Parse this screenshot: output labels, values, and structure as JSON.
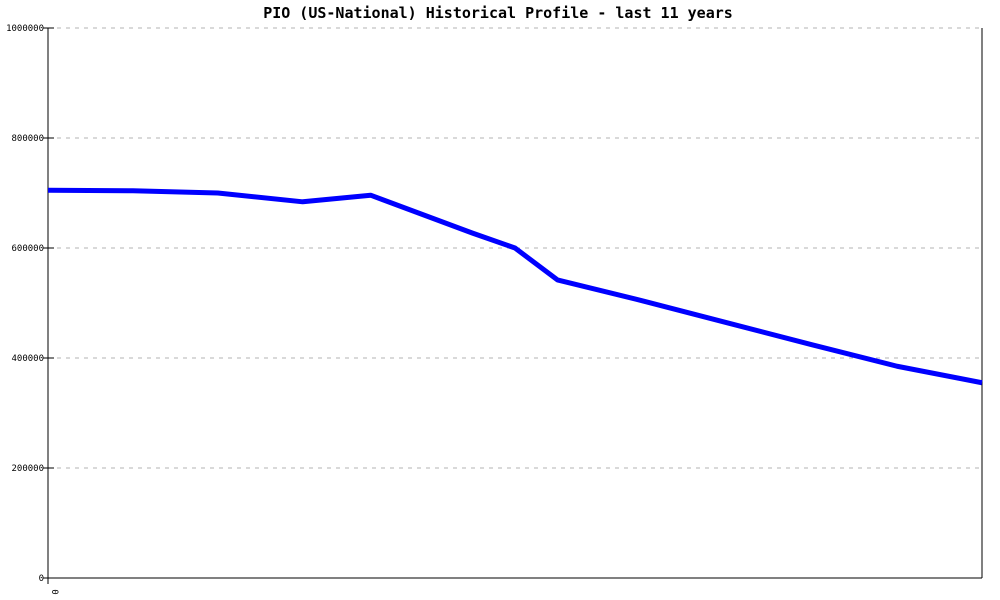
{
  "title": "PIO (US-National) Historical Profile - last 11 years",
  "colors": {
    "line": "#0000ff",
    "grid": "#b3b3b3",
    "axis": "#000000",
    "background": "#ffffff",
    "text": "#000000"
  },
  "chart_data": {
    "type": "line",
    "title": "PIO (US-National) Historical Profile - last 11 years",
    "xlabel": "",
    "ylabel": "",
    "xlim": [
      0,
      11
    ],
    "ylim": [
      0,
      1000000
    ],
    "yticks": [
      0,
      200000,
      400000,
      600000,
      800000,
      1000000
    ],
    "ytick_labels": [
      "0",
      "200000",
      "400000",
      "600000",
      "800000",
      "1000000"
    ],
    "xticks": [
      0
    ],
    "xtick_labels": [
      "0"
    ],
    "grid": true,
    "legend": "none",
    "series": [
      {
        "name": "PIO (US-National)",
        "color": "#0000ff",
        "x": [
          0,
          1,
          2,
          3,
          3.8,
          5,
          5.5,
          6,
          7,
          8,
          9,
          10,
          11
        ],
        "values": [
          705000,
          704000,
          700000,
          684000,
          696000,
          627000,
          600000,
          542000,
          504000,
          464000,
          424000,
          385000,
          355000
        ]
      }
    ]
  }
}
